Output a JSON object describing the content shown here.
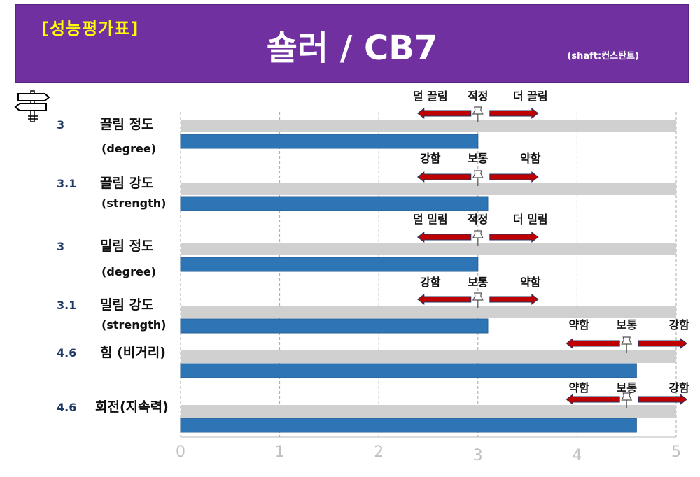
{
  "header": {
    "tag": "[성능평가표]",
    "title": "숄러 / CB7",
    "subtitle": "(shaft:컨스탄트)"
  },
  "colors": {
    "header_bg": "#7030a0",
    "tag": "#ffff00",
    "bar": "#2e75b6",
    "track": "#d0d0d0",
    "arrow": "#c00000",
    "value_label": "#1f3864",
    "tick": "#c0c0c0"
  },
  "chart_data": {
    "type": "bar",
    "orientation": "horizontal",
    "xlim": [
      0,
      5
    ],
    "ticks": [
      "0",
      "1",
      "2",
      "3",
      "4",
      "5"
    ],
    "grid": true,
    "rows": [
      {
        "label": "끌림 정도",
        "sublabel": "(degree)",
        "value": 3,
        "value_label": "3",
        "scale": {
          "left": "덜 끌림",
          "center": "적정",
          "right": "더 끌림",
          "center_value": 3.0
        }
      },
      {
        "label": "끌림 강도",
        "sublabel": "(strength)",
        "value": 3.1,
        "value_label": "3.1",
        "scale": {
          "left": "강함",
          "center": "보통",
          "right": "약함",
          "center_value": 3.0
        }
      },
      {
        "label": "밀림 정도",
        "sublabel": "(degree)",
        "value": 3,
        "value_label": "3",
        "scale": {
          "left": "덜 밀림",
          "center": "적정",
          "right": "더 밀림",
          "center_value": 3.0
        }
      },
      {
        "label": "밀림 강도",
        "sublabel": "(strength)",
        "value": 3.1,
        "value_label": "3.1",
        "scale": {
          "left": "강함",
          "center": "보통",
          "right": "약함",
          "center_value": 3.0
        }
      },
      {
        "label": "힘 (비거리)",
        "sublabel": "",
        "value": 4.6,
        "value_label": "4.6",
        "scale": {
          "left": "약함",
          "center": "보통",
          "right": "강함",
          "center_value": 4.5
        }
      },
      {
        "label": "회전(지속력)",
        "sublabel": "",
        "value": 4.6,
        "value_label": "4.6",
        "scale": {
          "left": "약함",
          "center": "보통",
          "right": "강함",
          "center_value": 4.5
        }
      }
    ]
  }
}
